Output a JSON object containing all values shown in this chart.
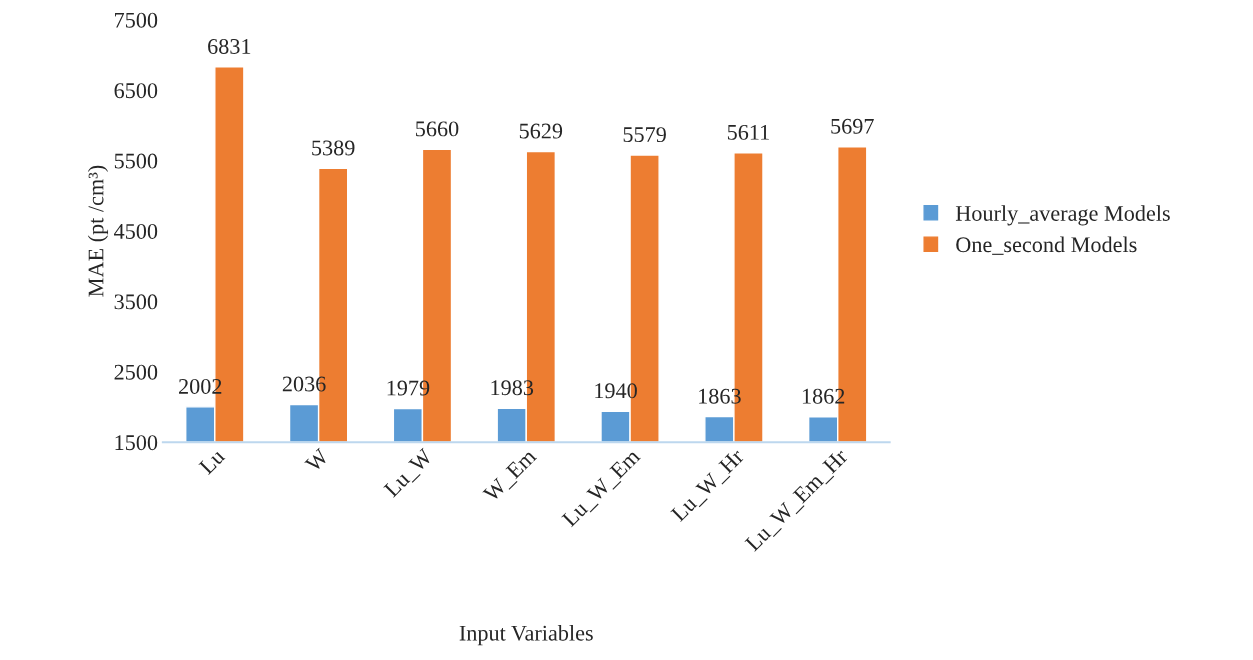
{
  "chart_data": {
    "type": "bar",
    "xlabel": "Input Variables",
    "ylabel": "MAE (pt /cm³)",
    "categories": [
      "Lu",
      "W",
      "Lu_W",
      "W_Em",
      "Lu_W_Em",
      "Lu_W_Hr",
      "Lu_W_Em_Hr"
    ],
    "series": [
      {
        "name": "Hourly_average Models",
        "color": "#5b9bd5",
        "values": [
          2002,
          2036,
          1979,
          1983,
          1940,
          1863,
          1862
        ]
      },
      {
        "name": "One_second Models",
        "color": "#ed7d31",
        "values": [
          6831,
          5389,
          5660,
          5629,
          5579,
          5611,
          5697
        ]
      }
    ],
    "ylim": [
      1500,
      7500
    ],
    "yticks": [
      1500,
      2500,
      3500,
      4500,
      5500,
      6500,
      7500
    ],
    "grid": false,
    "legend": "right",
    "data_labels": true
  }
}
